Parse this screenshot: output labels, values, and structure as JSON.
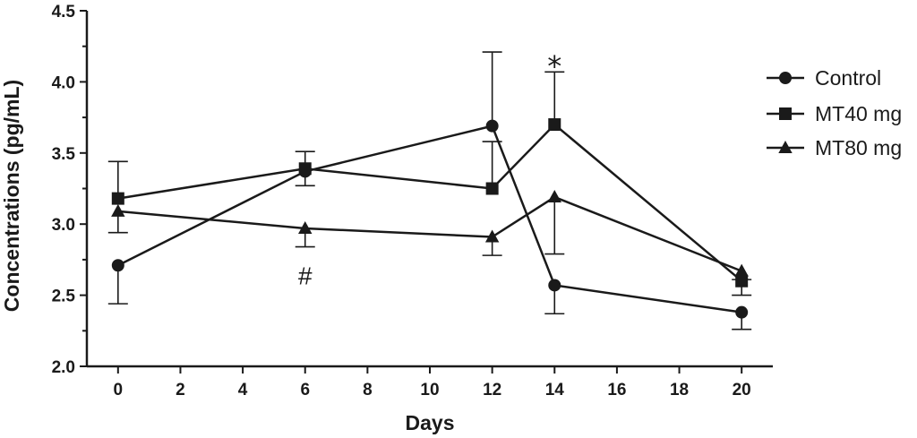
{
  "chart_data": {
    "type": "line",
    "xlabel": "Days",
    "ylabel": "Concentrations (pg/mL)",
    "xlim": [
      -1,
      21
    ],
    "ylim": [
      2.0,
      4.5
    ],
    "xticks": [
      "0",
      "2",
      "4",
      "6",
      "8",
      "10",
      "12",
      "14",
      "16",
      "18",
      "20"
    ],
    "yticks": [
      "2.0",
      "2.5",
      "3.0",
      "3.5",
      "4.0",
      "4.5"
    ],
    "x": [
      0,
      6,
      12,
      14,
      20
    ],
    "legend_position": "right",
    "series": [
      {
        "name": "Control",
        "marker": "circle",
        "values": [
          2.71,
          3.37,
          3.69,
          2.57,
          2.38
        ],
        "errors": [
          0.27,
          0.1,
          0.52,
          0.2,
          0.12
        ],
        "error_direction": [
          "down",
          "down",
          "up",
          "down",
          "down"
        ]
      },
      {
        "name": "MT40 mg",
        "marker": "square",
        "values": [
          3.18,
          3.39,
          3.25,
          3.7,
          2.6
        ],
        "errors": [
          0.26,
          0.12,
          0.33,
          0.37,
          0.1
        ],
        "error_direction": [
          "up",
          "up",
          "up",
          "up",
          "down"
        ]
      },
      {
        "name": "MT80 mg",
        "marker": "triangle",
        "values": [
          3.09,
          2.97,
          2.91,
          3.19,
          2.67
        ],
        "errors": [
          0.15,
          0.13,
          0.13,
          0.4,
          0.06
        ],
        "error_direction": [
          "down",
          "down",
          "down",
          "down",
          "down"
        ]
      }
    ],
    "annotations": [
      {
        "text": "*",
        "x": 14,
        "y": 4.18
      },
      {
        "text": "#",
        "x": 6,
        "y": 2.64
      }
    ]
  }
}
